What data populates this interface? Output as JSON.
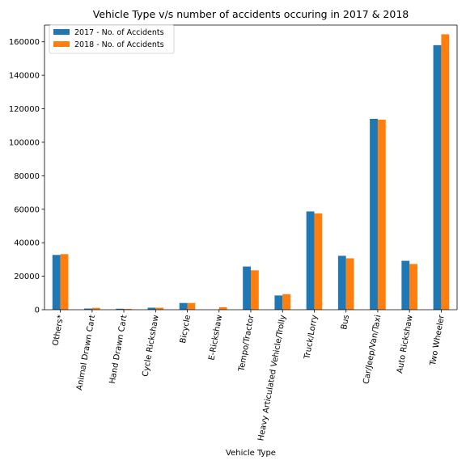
{
  "chart_data": {
    "type": "bar",
    "title": "Vehicle Type v/s number of accidents occuring in 2017 & 2018",
    "xlabel": "Vehicle Type",
    "ylabel": "",
    "ylim": [
      0,
      170000
    ],
    "yticks": [
      0,
      20000,
      40000,
      60000,
      80000,
      100000,
      120000,
      140000,
      160000
    ],
    "grid": false,
    "legend_position": "top-left",
    "categories": [
      "Others*",
      "Animal Drawn Cart",
      "Hand Drawn Cart",
      "Cycle Rickshaw",
      "Bicycle",
      "E-Rickshaw",
      "Tempo/Tractor",
      "Heavy Articulated Vehicle/Trolly",
      "Truck/Lorry",
      "Bus",
      "Car/Jeep/Van/Taxi",
      "Auto Rickshaw",
      "Two Wheeler"
    ],
    "series": [
      {
        "name": "2017 - No. of Accidents",
        "color": "#1f77b4",
        "values": [
          32700,
          700,
          600,
          1200,
          4000,
          0,
          25800,
          8500,
          58700,
          32200,
          114000,
          29200,
          158000
        ]
      },
      {
        "name": "2018 - No. of Accidents",
        "color": "#ff7f0e",
        "values": [
          33200,
          1100,
          500,
          1200,
          4000,
          1500,
          23500,
          9300,
          57500,
          30700,
          113500,
          27300,
          164500
        ]
      }
    ]
  }
}
